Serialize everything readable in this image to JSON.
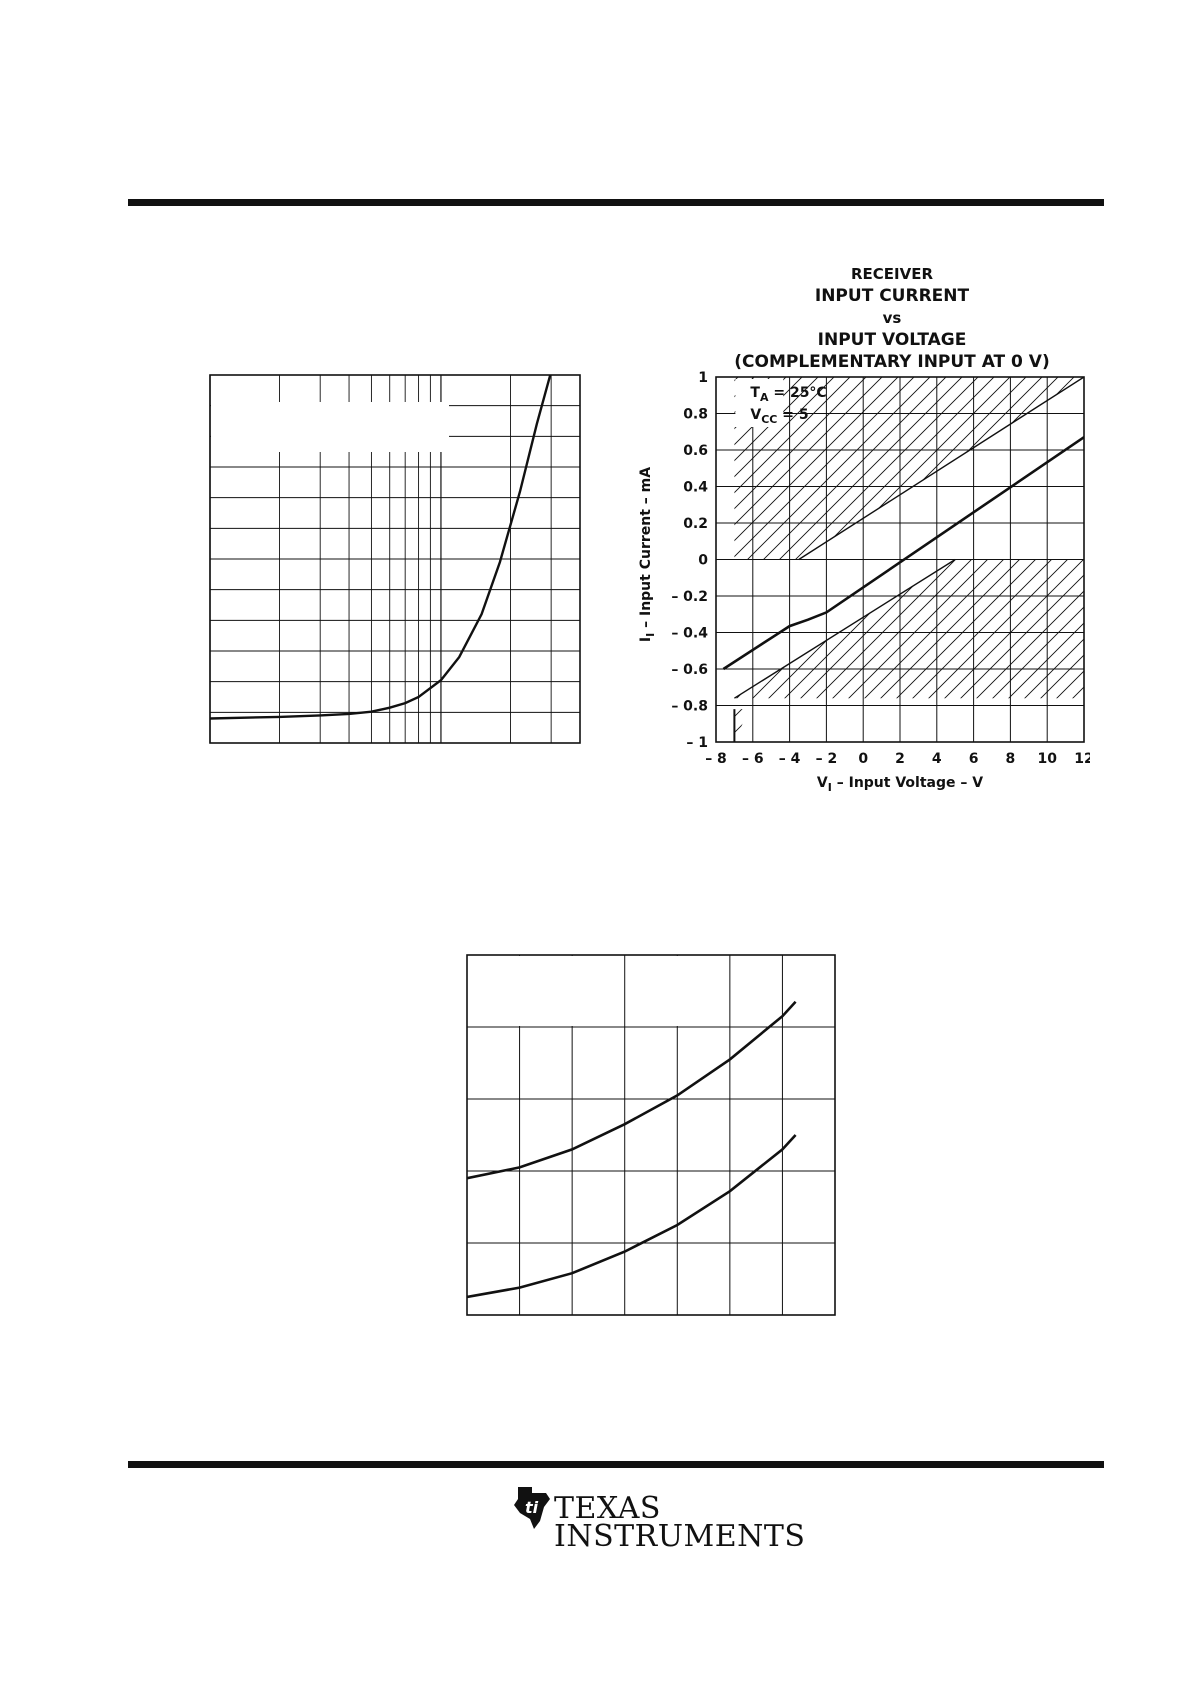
{
  "page": {
    "brand": {
      "line1": "TEXAS",
      "line2": "INSTRUMENTS"
    }
  },
  "chart_data": [
    {
      "type": "line",
      "title": "",
      "xscale": "log",
      "xlim": [
        1,
        40
      ],
      "ylim": [
        0,
        12
      ],
      "series": [
        {
          "x": [
            1,
            2,
            3,
            4,
            5,
            6,
            7,
            8,
            10,
            12,
            15,
            18,
            22,
            26,
            30,
            33
          ],
          "y": [
            0.8,
            0.85,
            0.9,
            0.95,
            1.02,
            1.15,
            1.3,
            1.5,
            2.05,
            2.8,
            4.2,
            5.9,
            8.2,
            10.4,
            12.1,
            13.0
          ]
        }
      ],
      "grid": true
    },
    {
      "type": "line",
      "title_lines": [
        "RECEIVER",
        "INPUT CURRENT",
        "vs",
        "INPUT VOLTAGE",
        "(COMPLEMENTARY INPUT AT 0 V)"
      ],
      "xlabel": "V",
      "xlabel_sub": "I",
      "xlabel_rest": " –  Input Voltage –  V",
      "ylabel": "I",
      "ylabel_sub": "I",
      "ylabel_rest": " –  Input Current –  mA",
      "xlim": [
        -8,
        12
      ],
      "ylim": [
        -1,
        1
      ],
      "xticks": [
        -8,
        -6,
        -4,
        -2,
        0,
        2,
        4,
        6,
        8,
        10,
        12
      ],
      "xtick_labels": [
        "– 8",
        "– 6",
        "– 4",
        "– 2",
        "0",
        "2",
        "4",
        "6",
        "8",
        "10",
        "12"
      ],
      "yticks": [
        1,
        0.8,
        0.6,
        0.4,
        0.2,
        0,
        -0.2,
        -0.4,
        -0.6,
        -0.8,
        -1
      ],
      "ytick_labels": [
        "1",
        "0.8",
        "0.6",
        "0.4",
        "0.2",
        "0",
        "– 0.2",
        "– 0.4",
        "– 0.6",
        "– 0.8",
        "– 1"
      ],
      "annotation": {
        "ta": "T",
        "ta_sub": "A",
        "ta_rest": " = 25°C",
        "vcc": "V",
        "vcc_sub": "CC",
        "vcc_rest": " = 5"
      },
      "series": [
        {
          "x": [
            -7.6,
            -4,
            -3,
            -2,
            12
          ],
          "y": [
            -0.6,
            -0.365,
            -0.33,
            -0.29,
            0.67
          ]
        }
      ],
      "bounds": [
        {
          "x": [
            -3.5,
            12
          ],
          "y": [
            0,
            1
          ]
        },
        {
          "x": [
            -7,
            5
          ],
          "y": [
            -0.76,
            0
          ]
        }
      ],
      "grid": true
    },
    {
      "type": "line",
      "title": "",
      "xlim": [
        0,
        7
      ],
      "ylim": [
        0,
        5
      ],
      "series": [
        {
          "x": [
            0,
            1,
            2,
            3,
            4,
            5,
            6,
            6.25
          ],
          "y": [
            1.9,
            2.05,
            2.3,
            2.65,
            3.05,
            3.55,
            4.15,
            4.35
          ]
        },
        {
          "x": [
            0,
            1,
            2,
            3,
            4,
            5,
            6,
            6.25
          ],
          "y": [
            0.25,
            0.38,
            0.58,
            0.88,
            1.25,
            1.72,
            2.3,
            2.5
          ]
        }
      ],
      "grid": true
    }
  ]
}
